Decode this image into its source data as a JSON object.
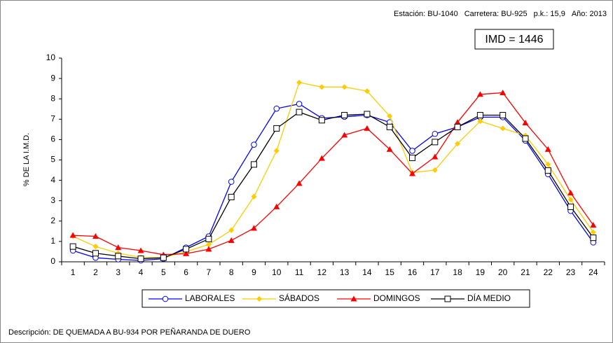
{
  "chart_data": {
    "type": "line",
    "header": [
      "Estación: BU-1040",
      "Carretera: BU-925",
      "p.k.: 15,9",
      "Año: 2013"
    ],
    "annotation": "IMD = 1446",
    "y_label": "% DE LA I.M.D.",
    "description": "Descripción: DE QUEMADA A BU-934 POR PEÑARANDA DE DUERO",
    "categories": [
      1,
      2,
      3,
      4,
      5,
      6,
      7,
      8,
      9,
      10,
      11,
      12,
      13,
      14,
      15,
      16,
      17,
      18,
      19,
      20,
      21,
      22,
      23,
      24
    ],
    "ylim": [
      0,
      10
    ],
    "yticks": [
      0,
      1,
      2,
      3,
      4,
      5,
      6,
      7,
      8,
      9,
      10
    ],
    "grid": false,
    "series": [
      {
        "name": "LABORALES",
        "color": "#0000ff",
        "marker": "circle",
        "values": [
          0.55,
          0.2,
          0.12,
          0.07,
          0.15,
          0.7,
          1.25,
          3.93,
          5.75,
          7.52,
          7.75,
          7.05,
          7.12,
          7.2,
          6.85,
          5.45,
          6.28,
          6.62,
          7.1,
          7.1,
          5.95,
          4.3,
          2.5,
          0.95
        ]
      },
      {
        "name": "SÁBADOS",
        "color": "#ffcc00",
        "marker": "diamond",
        "values": [
          1.25,
          0.75,
          0.42,
          0.22,
          0.2,
          0.5,
          0.85,
          1.55,
          3.2,
          5.45,
          8.8,
          8.58,
          8.58,
          8.38,
          7.15,
          4.38,
          4.5,
          5.8,
          6.9,
          6.55,
          6.2,
          4.78,
          3.05,
          1.45
        ]
      },
      {
        "name": "DOMINGOS",
        "color": "#ff0000",
        "marker": "triangle",
        "values": [
          1.3,
          1.25,
          0.7,
          0.55,
          0.35,
          0.4,
          0.62,
          1.05,
          1.65,
          2.7,
          3.85,
          5.08,
          6.22,
          6.55,
          5.52,
          4.33,
          5.15,
          6.85,
          8.22,
          8.3,
          6.82,
          5.52,
          3.38,
          1.8
        ]
      },
      {
        "name": "DÍA MEDIO",
        "color": "#000000",
        "marker": "square",
        "values": [
          0.75,
          0.42,
          0.28,
          0.15,
          0.2,
          0.62,
          1.12,
          3.18,
          4.78,
          6.55,
          7.35,
          6.95,
          7.2,
          7.25,
          6.62,
          5.1,
          5.88,
          6.62,
          7.2,
          7.2,
          6.05,
          4.48,
          2.7,
          1.18
        ]
      }
    ]
  }
}
